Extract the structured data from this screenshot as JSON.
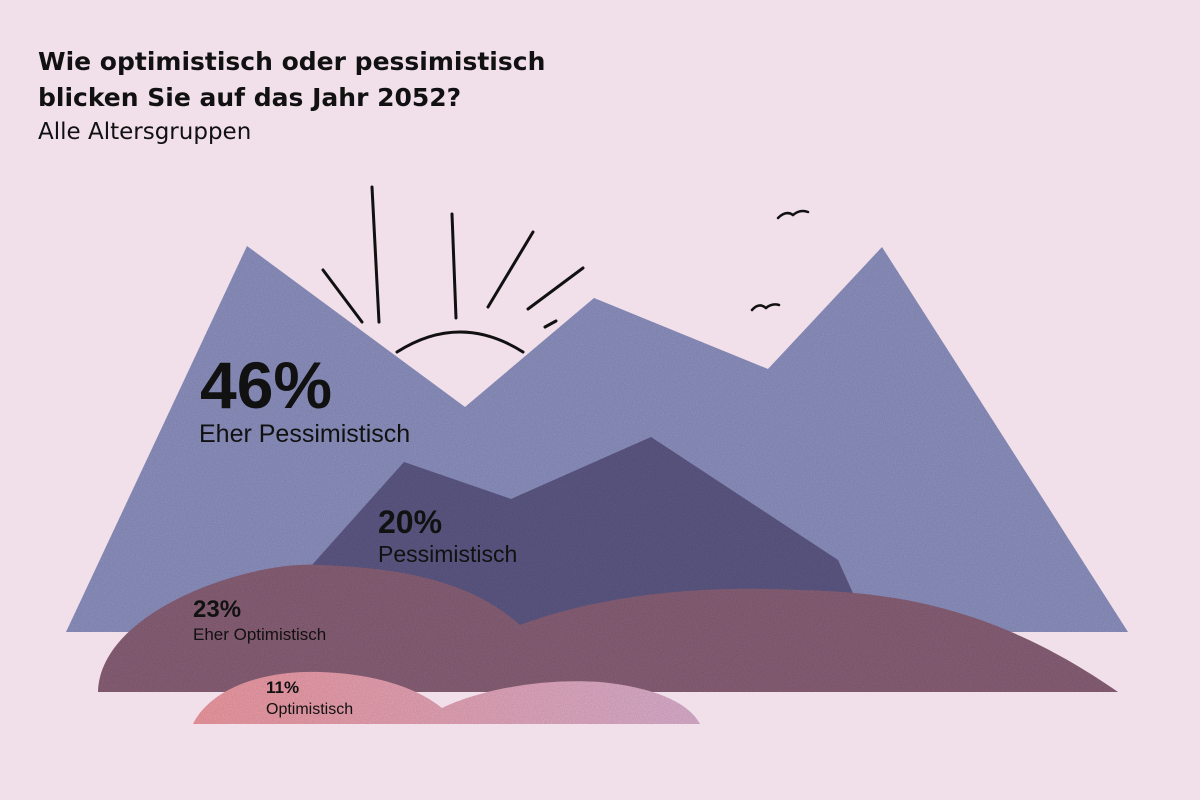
{
  "header": {
    "title": "Wie optimistisch oder pessimistisch blicken Sie auf das Jahr 2052?",
    "subtitle": "Alle Altersgruppen"
  },
  "colors": {
    "background": "#f1dfea",
    "eher_pessimistisch": "#8e93c1",
    "pessimistisch": "#5f5a86",
    "eher_optimistisch": "#8a6278",
    "optimistisch": "#ec9aa6",
    "ink": "#111111"
  },
  "chart_data": {
    "type": "pie",
    "title": "Wie optimistisch oder pessimistisch blicken Sie auf das Jahr 2052?",
    "subtitle": "Alle Altersgruppen",
    "unit": "%",
    "categories": [
      "Eher Pessimistisch",
      "Pessimistisch",
      "Eher Optimistisch",
      "Optimistisch"
    ],
    "values": [
      46,
      20,
      23,
      11
    ],
    "value_labels": [
      "46%",
      "20%",
      "23%",
      "11%"
    ]
  }
}
